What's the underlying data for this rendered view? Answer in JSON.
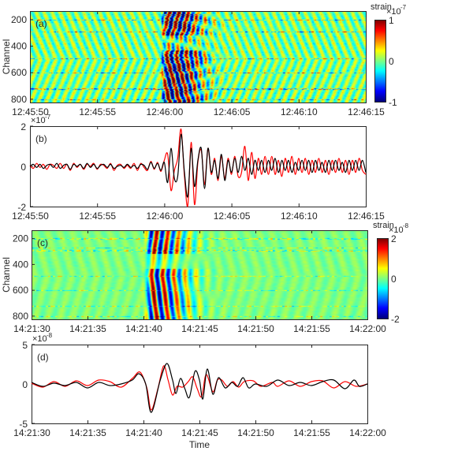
{
  "chart_data": [
    {
      "panel": "a",
      "type": "heatmap",
      "panel_label": "(a)",
      "ylabel": "Channel",
      "yticks": [
        200,
        400,
        600,
        800
      ],
      "ylim": [
        135,
        825
      ],
      "xlim_seconds": [
        0,
        25
      ],
      "xtick_labels": [
        "12:45:50",
        "12:45:55",
        "12:46:00",
        "12:46:05",
        "12:46:10",
        "12:46:15"
      ],
      "colorbar": {
        "label": "strain",
        "exponent": "×10",
        "exponent_power": "-7",
        "ticks": [
          "1",
          "0",
          "-1"
        ],
        "clim": [
          -1,
          1
        ],
        "colormap": "jet"
      },
      "event_window_seconds": [
        9.8,
        16.5
      ],
      "noisy_channels": [
        200,
        290,
        490,
        600,
        720,
        800
      ]
    },
    {
      "panel": "b",
      "type": "line",
      "panel_label": "(b)",
      "exponent": "×10",
      "exponent_power": "-7",
      "ylim": [
        -2,
        2
      ],
      "yticks": [
        "2",
        "0",
        "-2"
      ],
      "xlim_seconds": [
        0,
        25
      ],
      "xtick_labels": [
        "12:45:50",
        "12:45:55",
        "12:46:00",
        "12:46:05",
        "12:46:10",
        "12:46:15"
      ],
      "t0": 0,
      "dt": 0.25,
      "series": [
        {
          "name": "red",
          "color": "#ff0000",
          "values": [
            0.05,
            -0.1,
            0.15,
            -0.05,
            0.1,
            -0.15,
            0.1,
            0.05,
            -0.1,
            0.15,
            -0.1,
            0.1,
            -0.2,
            0.15,
            -0.05,
            0.1,
            -0.15,
            0.1,
            0,
            0.15,
            -0.15,
            0.1,
            0.05,
            -0.1,
            0.15,
            -0.2,
            0.05,
            0.1,
            -0.1,
            0.05,
            -0.1,
            0.15,
            -0.2,
            0.15,
            -0.05,
            -0.2,
            0.25,
            -0.15,
            0.2,
            -0.25,
            0.3,
            0.6,
            -1.2,
            -0.2,
            0.4,
            1.85,
            -0.5,
            -1.95,
            1.2,
            -1.9,
            0.2,
            0.8,
            -0.9,
            0.9,
            -0.4,
            0.4,
            -0.7,
            0.5,
            -0.6,
            0.4,
            -0.4,
            0.5,
            -0.5,
            -0.3,
            1.0,
            -0.7,
            0.7,
            -0.6,
            0.4,
            -0.4,
            0.5,
            -0.4,
            0.5,
            -0.4,
            0.3,
            -0.5,
            0.4,
            -0.3,
            0.5,
            -0.4,
            0.4,
            -0.3,
            0.4,
            -0.4,
            0.3,
            -0.3,
            0.4,
            -0.3,
            0.3,
            -0.4,
            0.3,
            -0.3,
            0.4,
            -0.3,
            0.3,
            -0.4,
            0.3,
            -0.3,
            0.4,
            -0.2,
            -0.4
          ]
        },
        {
          "name": "black",
          "color": "#000000",
          "values": [
            0,
            0.1,
            -0.05,
            0.1,
            -0.1,
            0.05,
            0.1,
            -0.05,
            0.15,
            -0.1,
            0.05,
            0.1,
            -0.15,
            0.1,
            0,
            0.1,
            -0.1,
            0.15,
            -0.05,
            0.1,
            -0.1,
            0.05,
            0.1,
            -0.05,
            0.1,
            -0.1,
            0,
            0.05,
            -0.05,
            0.1,
            -0.05,
            0.05,
            -0.1,
            0.1,
            0.05,
            -0.15,
            0.2,
            -0.1,
            0.15,
            -0.2,
            0.2,
            -0.8,
            0.9,
            -0.6,
            -0.5,
            1.6,
            -0.3,
            -1.5,
            0.9,
            -1.0,
            0.3,
            0.9,
            -1.1,
            0.9,
            -0.3,
            0.3,
            -0.6,
            0.6,
            -0.7,
            0.3,
            -0.3,
            0.4,
            -0.3,
            0.5,
            -0.2,
            0.4,
            -0.4,
            0.3,
            -0.2,
            0.3,
            -0.3,
            0.3,
            -0.2,
            0.4,
            -0.3,
            0.3,
            -0.2,
            0.3,
            -0.3,
            0.2,
            -0.2,
            0.3,
            -0.2,
            0.3,
            -0.3,
            0.3,
            -0.2,
            0.2,
            -0.3,
            0.3,
            -0.2,
            0.3,
            -0.2,
            0.2,
            -0.3,
            0.3,
            -0.2,
            0.3,
            -0.2,
            0.3,
            -0.3
          ]
        }
      ]
    },
    {
      "panel": "c",
      "type": "heatmap",
      "panel_label": "(c)",
      "ylabel": "Channel",
      "yticks": [
        200,
        400,
        600,
        800
      ],
      "ylim": [
        135,
        825
      ],
      "xlim_seconds": [
        0,
        30
      ],
      "xtick_labels": [
        "14:21:30",
        "14:21:35",
        "14:21:40",
        "14:21:45",
        "14:21:50",
        "14:21:55",
        "14:22:00"
      ],
      "colorbar": {
        "label": "strain",
        "exponent": "×10",
        "exponent_power": "-8",
        "ticks": [
          "2",
          "0",
          "-2"
        ],
        "clim": [
          -2,
          2
        ],
        "colormap": "jet"
      },
      "event_window_seconds": [
        9.6,
        17.5
      ],
      "noisy_channels": [
        200,
        270,
        290,
        490,
        600,
        720,
        800
      ]
    },
    {
      "panel": "d",
      "type": "line",
      "panel_label": "(d)",
      "exponent": "×10",
      "exponent_power": "-8",
      "ylim": [
        -5,
        5
      ],
      "yticks": [
        "5",
        "0",
        "-5"
      ],
      "xlim_seconds": [
        0,
        30
      ],
      "xtick_labels": [
        "14:21:30",
        "14:21:35",
        "14:21:40",
        "14:21:45",
        "14:21:50",
        "14:21:55",
        "14:22:00"
      ],
      "xlabel": "Time",
      "series": [
        {
          "name": "red",
          "color": "#ff0000",
          "points": [
            [
              0,
              0.1
            ],
            [
              1,
              -0.4
            ],
            [
              2,
              0.3
            ],
            [
              3,
              -0.3
            ],
            [
              4,
              0.4
            ],
            [
              5,
              -0.2
            ],
            [
              6,
              0.5
            ],
            [
              7,
              0.3
            ],
            [
              8,
              -0.4
            ],
            [
              9,
              0.7
            ],
            [
              9.7,
              1.5
            ],
            [
              10.3,
              -0.5
            ],
            [
              10.7,
              -3.3
            ],
            [
              11.3,
              -0.5
            ],
            [
              11.8,
              2.3
            ],
            [
              12.2,
              0.5
            ],
            [
              12.6,
              -1.4
            ],
            [
              13.0,
              -0.3
            ],
            [
              13.5,
              -0.4
            ],
            [
              14.0,
              0.3
            ],
            [
              14.4,
              0.9
            ],
            [
              14.8,
              -0.6
            ],
            [
              15.2,
              -1.6
            ],
            [
              15.6,
              1.2
            ],
            [
              16.2,
              -1.0
            ],
            [
              16.6,
              0.5
            ],
            [
              17,
              0.5
            ],
            [
              17.5,
              -0.3
            ],
            [
              18,
              0.3
            ],
            [
              18.5,
              -0.4
            ],
            [
              19,
              0.3
            ],
            [
              19.8,
              0.4
            ],
            [
              20.5,
              -0.3
            ],
            [
              21.5,
              0.2
            ],
            [
              22,
              -0.3
            ],
            [
              23,
              0.4
            ],
            [
              24,
              -0.3
            ],
            [
              25,
              0.3
            ],
            [
              26,
              0.4
            ],
            [
              27,
              -0.5
            ],
            [
              28,
              0.3
            ],
            [
              29,
              -0.3
            ],
            [
              30,
              0
            ]
          ]
        },
        {
          "name": "black",
          "color": "#000000",
          "points": [
            [
              0,
              0.2
            ],
            [
              1,
              -0.3
            ],
            [
              2,
              0.1
            ],
            [
              3,
              -0.2
            ],
            [
              4,
              0.2
            ],
            [
              5,
              -0.5
            ],
            [
              6,
              0.2
            ],
            [
              7,
              -0.2
            ],
            [
              8,
              0
            ],
            [
              9,
              0.5
            ],
            [
              9.6,
              1.3
            ],
            [
              10.2,
              0
            ],
            [
              10.7,
              -3.6
            ],
            [
              11.5,
              0.5
            ],
            [
              12.1,
              2.6
            ],
            [
              12.6,
              0.5
            ],
            [
              12.9,
              -1.2
            ],
            [
              13.3,
              0.7
            ],
            [
              13.7,
              -0.6
            ],
            [
              14.1,
              -1.7
            ],
            [
              14.6,
              1.6
            ],
            [
              15.0,
              0.5
            ],
            [
              15.3,
              -1.9
            ],
            [
              15.7,
              1.9
            ],
            [
              16.2,
              -1.3
            ],
            [
              16.7,
              0.8
            ],
            [
              17.3,
              -0.5
            ],
            [
              17.9,
              0.2
            ],
            [
              18.4,
              -0.3
            ],
            [
              18.9,
              0.8
            ],
            [
              19.4,
              -0.5
            ],
            [
              20,
              0
            ],
            [
              21,
              -0.3
            ],
            [
              22,
              0.5
            ],
            [
              23,
              -0.2
            ],
            [
              24,
              0.2
            ],
            [
              25,
              -0.2
            ],
            [
              26,
              0.3
            ],
            [
              27,
              0.5
            ],
            [
              28,
              -0.6
            ],
            [
              28.8,
              0.5
            ],
            [
              29.3,
              -0.3
            ],
            [
              30,
              0
            ]
          ]
        }
      ]
    }
  ]
}
